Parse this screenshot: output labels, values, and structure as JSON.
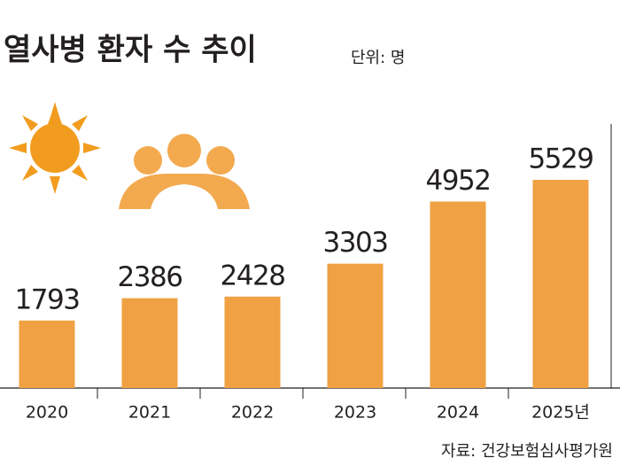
{
  "chart_data": {
    "type": "bar",
    "title": "열사병 환자 수 추이",
    "subtitle": "단위: 명",
    "source": "자료: 건강보험심사평가원",
    "categories": [
      "2020",
      "2021",
      "2022",
      "2023",
      "2024",
      "2025년"
    ],
    "values": [
      1793,
      2386,
      2428,
      3303,
      4952,
      5529
    ],
    "color": "#f0a143"
  }
}
